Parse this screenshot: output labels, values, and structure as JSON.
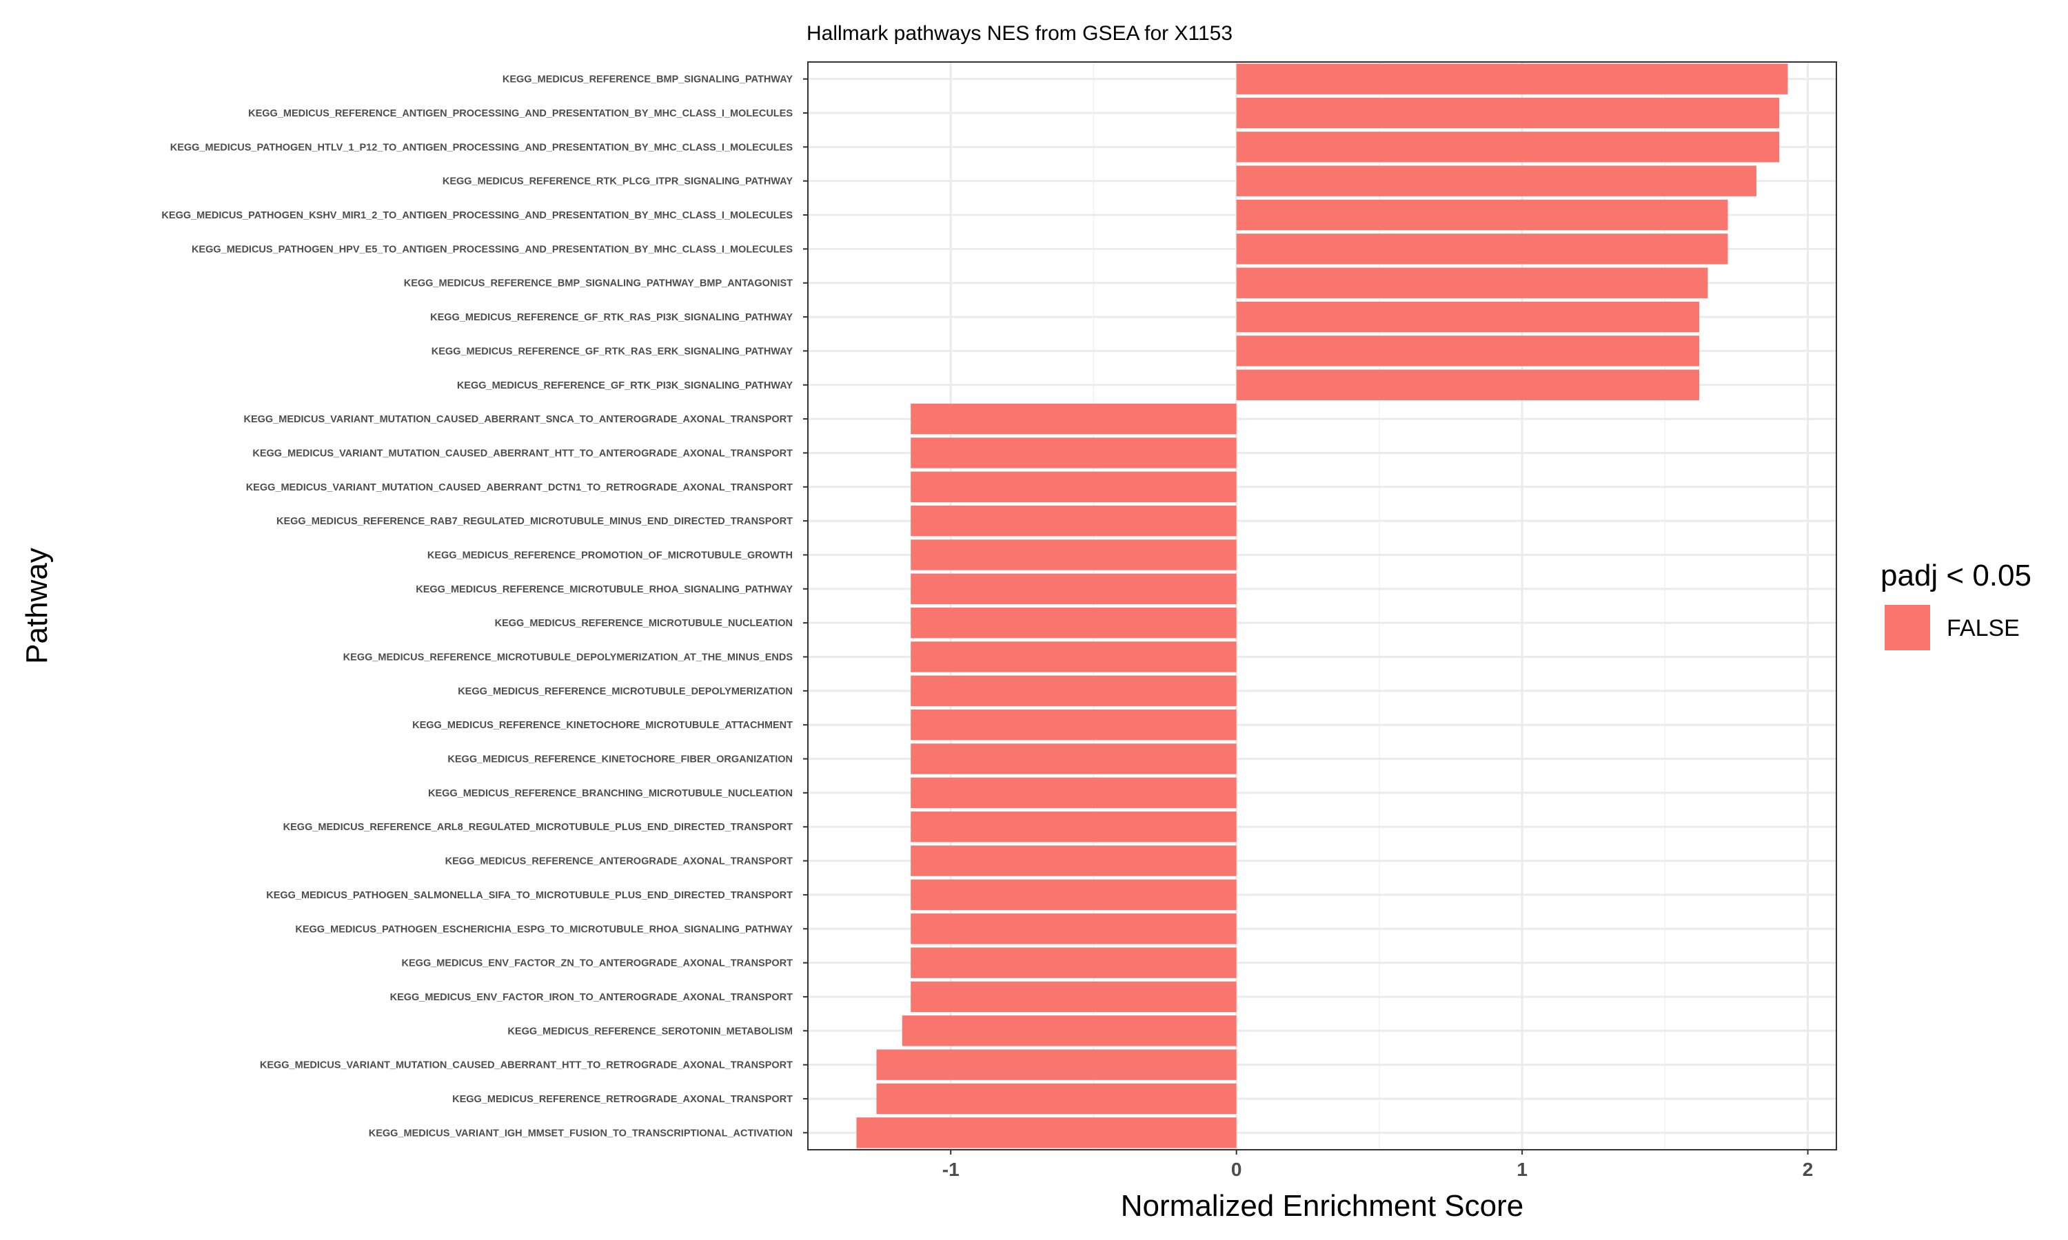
{
  "chart_data": {
    "type": "bar",
    "orientation": "horizontal",
    "title": "Hallmark pathways NES from GSEA for X1153",
    "xlabel": "Normalized Enrichment Score",
    "ylabel": "Pathway",
    "xlim": [
      -1.5,
      2.1
    ],
    "xticks": [
      -1,
      0,
      1,
      2
    ],
    "grid": true,
    "legend": {
      "title": "padj < 0.05",
      "placement": "right",
      "entries": [
        {
          "label": "FALSE",
          "color": "#F8766D"
        }
      ]
    },
    "bar_color": "#F8766D",
    "categories": [
      "KEGG_MEDICUS_REFERENCE_BMP_SIGNALING_PATHWAY",
      "KEGG_MEDICUS_REFERENCE_ANTIGEN_PROCESSING_AND_PRESENTATION_BY_MHC_CLASS_I_MOLECULES",
      "KEGG_MEDICUS_PATHOGEN_HTLV_1_P12_TO_ANTIGEN_PROCESSING_AND_PRESENTATION_BY_MHC_CLASS_I_MOLECULES",
      "KEGG_MEDICUS_REFERENCE_RTK_PLCG_ITPR_SIGNALING_PATHWAY",
      "KEGG_MEDICUS_PATHOGEN_KSHV_MIR1_2_TO_ANTIGEN_PROCESSING_AND_PRESENTATION_BY_MHC_CLASS_I_MOLECULES",
      "KEGG_MEDICUS_PATHOGEN_HPV_E5_TO_ANTIGEN_PROCESSING_AND_PRESENTATION_BY_MHC_CLASS_I_MOLECULES",
      "KEGG_MEDICUS_REFERENCE_BMP_SIGNALING_PATHWAY_BMP_ANTAGONIST",
      "KEGG_MEDICUS_REFERENCE_GF_RTK_RAS_PI3K_SIGNALING_PATHWAY",
      "KEGG_MEDICUS_REFERENCE_GF_RTK_RAS_ERK_SIGNALING_PATHWAY",
      "KEGG_MEDICUS_REFERENCE_GF_RTK_PI3K_SIGNALING_PATHWAY",
      "KEGG_MEDICUS_VARIANT_MUTATION_CAUSED_ABERRANT_SNCA_TO_ANTEROGRADE_AXONAL_TRANSPORT",
      "KEGG_MEDICUS_VARIANT_MUTATION_CAUSED_ABERRANT_HTT_TO_ANTEROGRADE_AXONAL_TRANSPORT",
      "KEGG_MEDICUS_VARIANT_MUTATION_CAUSED_ABERRANT_DCTN1_TO_RETROGRADE_AXONAL_TRANSPORT",
      "KEGG_MEDICUS_REFERENCE_RAB7_REGULATED_MICROTUBULE_MINUS_END_DIRECTED_TRANSPORT",
      "KEGG_MEDICUS_REFERENCE_PROMOTION_OF_MICROTUBULE_GROWTH",
      "KEGG_MEDICUS_REFERENCE_MICROTUBULE_RHOA_SIGNALING_PATHWAY",
      "KEGG_MEDICUS_REFERENCE_MICROTUBULE_NUCLEATION",
      "KEGG_MEDICUS_REFERENCE_MICROTUBULE_DEPOLYMERIZATION_AT_THE_MINUS_ENDS",
      "KEGG_MEDICUS_REFERENCE_MICROTUBULE_DEPOLYMERIZATION",
      "KEGG_MEDICUS_REFERENCE_KINETOCHORE_MICROTUBULE_ATTACHMENT",
      "KEGG_MEDICUS_REFERENCE_KINETOCHORE_FIBER_ORGANIZATION",
      "KEGG_MEDICUS_REFERENCE_BRANCHING_MICROTUBULE_NUCLEATION",
      "KEGG_MEDICUS_REFERENCE_ARL8_REGULATED_MICROTUBULE_PLUS_END_DIRECTED_TRANSPORT",
      "KEGG_MEDICUS_REFERENCE_ANTEROGRADE_AXONAL_TRANSPORT",
      "KEGG_MEDICUS_PATHOGEN_SALMONELLA_SIFA_TO_MICROTUBULE_PLUS_END_DIRECTED_TRANSPORT",
      "KEGG_MEDICUS_PATHOGEN_ESCHERICHIA_ESPG_TO_MICROTUBULE_RHOA_SIGNALING_PATHWAY",
      "KEGG_MEDICUS_ENV_FACTOR_ZN_TO_ANTEROGRADE_AXONAL_TRANSPORT",
      "KEGG_MEDICUS_ENV_FACTOR_IRON_TO_ANTEROGRADE_AXONAL_TRANSPORT",
      "KEGG_MEDICUS_REFERENCE_SEROTONIN_METABOLISM",
      "KEGG_MEDICUS_VARIANT_MUTATION_CAUSED_ABERRANT_HTT_TO_RETROGRADE_AXONAL_TRANSPORT",
      "KEGG_MEDICUS_REFERENCE_RETROGRADE_AXONAL_TRANSPORT",
      "KEGG_MEDICUS_VARIANT_IGH_MMSET_FUSION_TO_TRANSCRIPTIONAL_ACTIVATION"
    ],
    "values": [
      1.93,
      1.9,
      1.9,
      1.82,
      1.72,
      1.72,
      1.65,
      1.62,
      1.62,
      1.62,
      -1.14,
      -1.14,
      -1.14,
      -1.14,
      -1.14,
      -1.14,
      -1.14,
      -1.14,
      -1.14,
      -1.14,
      -1.14,
      -1.14,
      -1.14,
      -1.14,
      -1.14,
      -1.14,
      -1.14,
      -1.14,
      -1.17,
      -1.26,
      -1.26,
      -1.33
    ]
  }
}
